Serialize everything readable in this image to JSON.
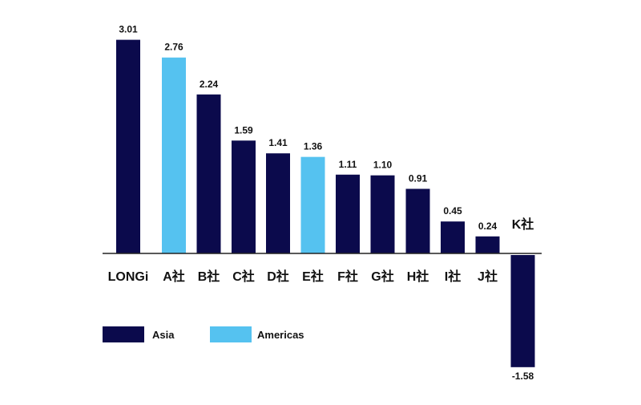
{
  "chart_data": {
    "type": "bar",
    "title": "",
    "xlabel": "",
    "ylabel": "",
    "categories": [
      "LONGi",
      "A社",
      "B社",
      "C社",
      "D社",
      "E社",
      "F社",
      "G社",
      "H社",
      "I社",
      "J社",
      "K社"
    ],
    "values": [
      3.01,
      2.76,
      2.24,
      1.59,
      1.41,
      1.36,
      1.11,
      1.1,
      0.91,
      0.45,
      0.24,
      -1.58
    ],
    "value_labels": [
      "3.01",
      "2.76",
      "2.24",
      "1.59",
      "1.41",
      "1.36",
      "1.11",
      "1.10",
      "0.91",
      "0.45",
      "0.24",
      "-1.58"
    ],
    "region": [
      "Asia",
      "Americas",
      "Asia",
      "Asia",
      "Asia",
      "Americas",
      "Asia",
      "Asia",
      "Asia",
      "Asia",
      "Asia",
      "Asia"
    ],
    "ylim": [
      -1.6,
      3.1
    ],
    "grid": false,
    "legend": {
      "placement": "bottom-left",
      "entries": [
        {
          "name": "Asia",
          "color": "#0b0a4c"
        },
        {
          "name": "Americas",
          "color": "#55c2f0"
        }
      ]
    }
  }
}
